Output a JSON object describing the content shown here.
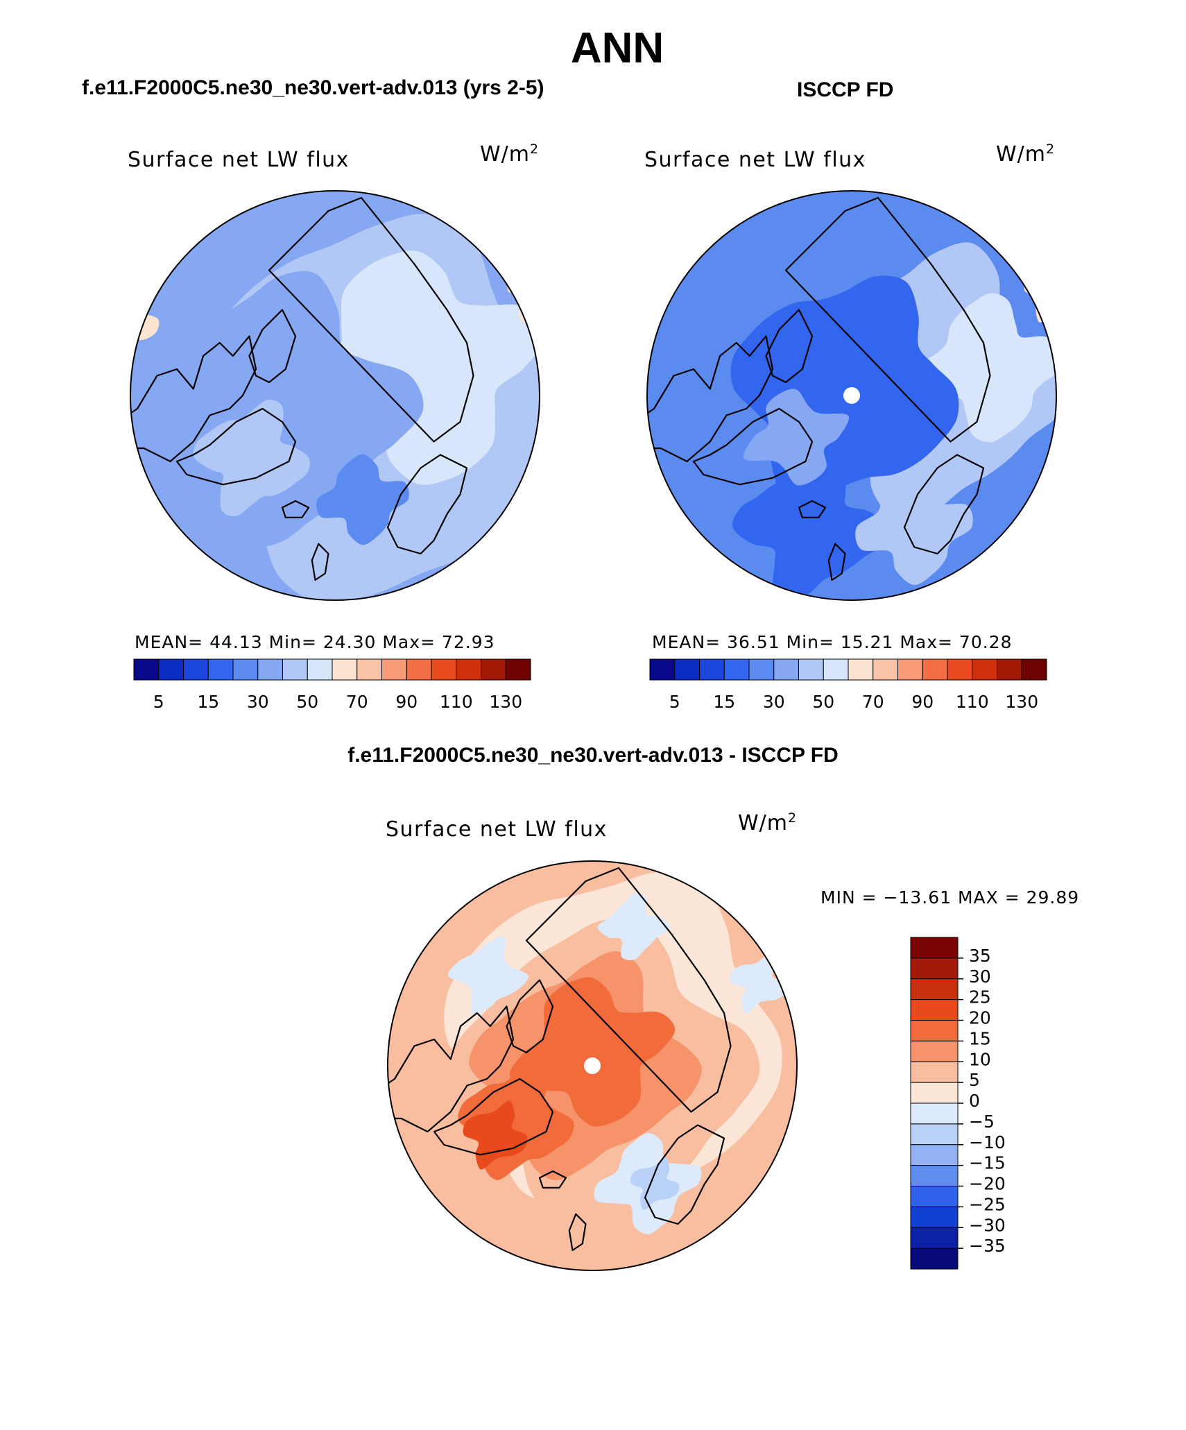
{
  "page": {
    "title": "ANN",
    "model_title": "f.e11.F2000C5.ne30_ne30.vert-adv.013 (yrs 2-5)",
    "obs_title": "ISCCP FD",
    "diff_title": "f.e11.F2000C5.ne30_ne30.vert-adv.013 - ISCCP FD"
  },
  "panels": {
    "model": {
      "variable": "Surface net LW flux",
      "units": "W/m",
      "units_sup": "2",
      "stats_text": "MEAN=  44.13   Min=  24.30   Max=  72.93"
    },
    "obs": {
      "variable": "Surface net LW flux",
      "units": "W/m",
      "units_sup": "2",
      "stats_text": "MEAN=  36.51   Min=  15.21   Max=  70.28"
    },
    "diff": {
      "variable": "Surface net LW flux",
      "units": "W/m",
      "units_sup": "2",
      "stats_text": "MIN = −13.61 MAX =   29.89"
    }
  },
  "chart_data": [
    {
      "type": "heatmap",
      "title": "Surface net LW flux",
      "units": "W/m2",
      "projection": "north polar stereographic",
      "statistics": {
        "mean": 44.13,
        "min": 24.3,
        "max": 72.93
      },
      "colorbar_orientation": "horizontal",
      "colorbar_labels": [
        "5",
        "15",
        "30",
        "50",
        "70",
        "90",
        "110",
        "130"
      ],
      "colorbar_colors": [
        "#08088a",
        "#0a2cc0",
        "#1a46dd",
        "#3366ee",
        "#5c8bf0",
        "#86a8f2",
        "#b1c8f6",
        "#d8e6fb",
        "#fde3d2",
        "#fbc4a8",
        "#f79a78",
        "#f26e45",
        "#eb4a1e",
        "#d02f0c",
        "#a11a06",
        "#6e0202"
      ],
      "field_description": "mostly 30-70 W/m2; lighter blue over oceans, darker blue over Arctic Ocean and continents"
    },
    {
      "type": "heatmap",
      "title": "Surface net LW flux",
      "units": "W/m2",
      "projection": "north polar stereographic",
      "statistics": {
        "mean": 36.51,
        "min": 15.21,
        "max": 70.28
      },
      "colorbar_orientation": "horizontal",
      "colorbar_labels": [
        "5",
        "15",
        "30",
        "50",
        "70",
        "90",
        "110",
        "130"
      ],
      "colorbar_colors": [
        "#08088a",
        "#0a2cc0",
        "#1a46dd",
        "#3366ee",
        "#5c8bf0",
        "#86a8f2",
        "#b1c8f6",
        "#d8e6fb",
        "#fde3d2",
        "#fbc4a8",
        "#f79a78",
        "#f26e45",
        "#eb4a1e",
        "#d02f0c",
        "#a11a06",
        "#6e0202"
      ],
      "field_description": "15-30 W/m2 over central Arctic, increasing toward the lower latitudes"
    },
    {
      "type": "heatmap",
      "title": "Surface net LW flux",
      "units": "W/m2",
      "projection": "north polar stereographic",
      "statistics": {
        "min": -13.61,
        "max": 29.89
      },
      "colorbar_orientation": "vertical",
      "colorbar_labels": [
        "35",
        "30",
        "25",
        "20",
        "15",
        "10",
        "5",
        "0",
        "−5",
        "−10",
        "−15",
        "−20",
        "−25",
        "−30",
        "−35"
      ],
      "colorbar_colors": [
        "#7a0403",
        "#a31a08",
        "#c7300e",
        "#e84a1c",
        "#f26b3a",
        "#f6936a",
        "#f9bea0",
        "#fce6d8",
        "#dceafb",
        "#b9d0f7",
        "#92b2f3",
        "#5f8ef0",
        "#2e63ea",
        "#1140d3",
        "#0b22a6",
        "#07087a"
      ],
      "field_description": "model minus ISCCP FD; positive (red) over central Arctic and Greenland, weak negative (blue) over Scandinavia and parts of Siberia"
    }
  ]
}
